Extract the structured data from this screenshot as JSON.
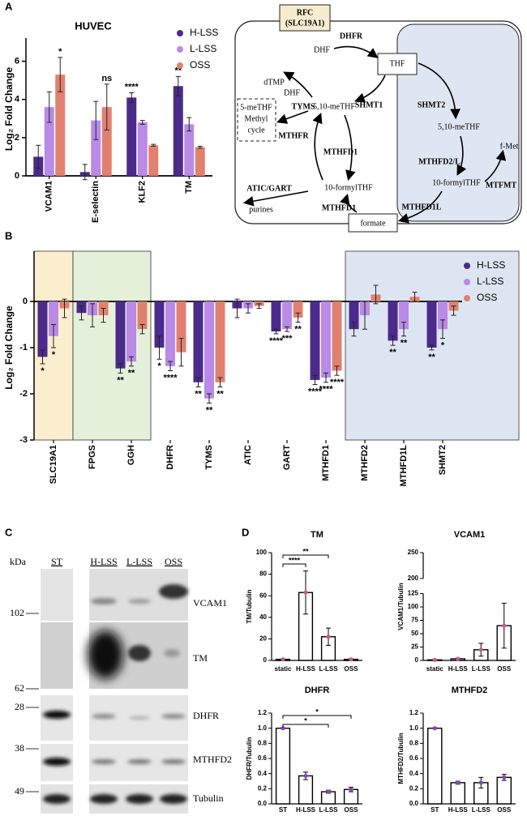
{
  "panels": [
    "A",
    "B",
    "C",
    "D"
  ],
  "chart_data": [
    {
      "type": "grouped-bar",
      "title": "HUVEC",
      "y_label": "Log₂ Fold Change",
      "categories": [
        "VCAM1",
        "E-selectin",
        "KLF2",
        "TM"
      ],
      "series": [
        {
          "name": "H-LSS",
          "color": "#4b2a8c",
          "values": [
            1.0,
            0.2,
            4.1,
            4.7
          ],
          "errors": [
            0.6,
            0.4,
            0.25,
            0.5
          ],
          "annotations": [
            null,
            null,
            "****",
            "**"
          ]
        },
        {
          "name": "L-LSS",
          "color": "#b98ae6",
          "values": [
            3.6,
            2.9,
            2.8,
            2.7
          ],
          "errors": [
            0.8,
            1.0,
            0.1,
            0.35
          ],
          "annotations": [
            null,
            null,
            null,
            null
          ]
        },
        {
          "name": "OSS",
          "color": "#e2806f",
          "values": [
            5.3,
            3.6,
            1.6,
            1.5
          ],
          "errors": [
            0.9,
            1.2,
            0.05,
            0.05
          ],
          "annotations": [
            "*",
            "ns",
            null,
            null
          ]
        }
      ],
      "ylim": [
        0,
        7
      ],
      "yticks": [
        0,
        2,
        4,
        6
      ],
      "legend": "top-right"
    },
    {
      "type": "grouped-bar",
      "y_label": "Log₂ Fold Change",
      "categories": [
        "SLC19A1",
        "FPGS",
        "GGH",
        "DHFR",
        "TYMS",
        "ATIC",
        "GART",
        "MTHFD1",
        "MTHFD2",
        "MTHFD1L",
        "SHMT2"
      ],
      "series": [
        {
          "name": "H-LSS",
          "color": "#4b2a8c",
          "values": [
            -1.2,
            -0.25,
            -1.45,
            -1.0,
            -1.75,
            -0.15,
            -0.65,
            -1.7,
            -0.6,
            -0.85,
            -1.0
          ],
          "errors": [
            0.15,
            0.15,
            0.1,
            0.25,
            0.1,
            0.2,
            0.05,
            0.1,
            0.15,
            0.1,
            0.05
          ],
          "annotations": [
            "*",
            null,
            "**",
            "*",
            "**",
            null,
            "****",
            "****",
            null,
            "**",
            "**"
          ]
        },
        {
          "name": "L-LSS",
          "color": "#b98ae6",
          "values": [
            -0.75,
            -0.3,
            -1.3,
            -1.4,
            -2.1,
            -0.15,
            -0.6,
            -1.65,
            -0.3,
            -0.6,
            -0.6
          ],
          "errors": [
            0.25,
            0.25,
            0.1,
            0.1,
            0.1,
            0.1,
            0.05,
            0.1,
            0.3,
            0.15,
            0.2
          ],
          "annotations": [
            "*",
            null,
            "**",
            "****",
            "**",
            null,
            "***",
            "****",
            null,
            "**",
            "*"
          ]
        },
        {
          "name": "OSS",
          "color": "#e2806f",
          "values": [
            -0.15,
            -0.3,
            -0.6,
            -1.1,
            -1.75,
            -0.1,
            -0.35,
            -1.5,
            0.15,
            0.1,
            -0.2
          ],
          "errors": [
            0.2,
            0.15,
            0.1,
            0.3,
            0.1,
            0.05,
            0.1,
            0.1,
            0.2,
            0.1,
            0.1
          ],
          "annotations": [
            null,
            null,
            null,
            null,
            "**",
            null,
            "**",
            "****",
            null,
            null,
            null
          ]
        }
      ],
      "ylim": [
        -3,
        1
      ],
      "yticks": [
        -3,
        -2,
        -1,
        0
      ],
      "legend": "top-right"
    },
    {
      "type": "bar",
      "title": "TM",
      "y_label": "TM/Tubulin",
      "categories": [
        "static",
        "H-LSS",
        "L-LSS",
        "OSS"
      ],
      "values": [
        1,
        63,
        22,
        1
      ],
      "errors": [
        0.2,
        20,
        8,
        0.5
      ],
      "ylim": [
        0,
        100
      ],
      "yticks": [
        0,
        20,
        40,
        60,
        80,
        100
      ],
      "brackets": [
        {
          "categories": [
            "static",
            "H-LSS"
          ],
          "label": "****"
        },
        {
          "categories": [
            "static",
            "L-LSS"
          ],
          "label": "**"
        }
      ]
    },
    {
      "type": "bar",
      "title": "VCAM1",
      "y_label": "VCAM1/Tubulin",
      "categories": [
        "static",
        "H-LSS",
        "L-LSS",
        "OSS"
      ],
      "values": [
        1,
        3,
        20,
        65
      ],
      "errors": [
        0.3,
        1,
        12,
        42
      ],
      "ylim": [
        0,
        250
      ],
      "yticks": [
        0,
        25,
        50,
        75,
        100,
        125,
        200,
        250
      ],
      "axis_break": [
        125,
        200
      ]
    },
    {
      "type": "bar",
      "title": "DHFR",
      "y_label": "DHFR/Tubulin",
      "categories": [
        "ST",
        "H-LSS",
        "L-LSS",
        "OSS"
      ],
      "values": [
        1.0,
        0.37,
        0.16,
        0.19
      ],
      "errors": [
        0.005,
        0.05,
        0.02,
        0.03
      ],
      "ylim": [
        0,
        1.2
      ],
      "yticks": [
        {
          "value": 0,
          "label": "0.0"
        },
        0.2,
        0.4,
        0.6,
        0.8,
        {
          "value": 1,
          "label": "1.0"
        },
        1.2
      ],
      "brackets": [
        {
          "categories": [
            "ST",
            "L-LSS"
          ],
          "label": "*"
        },
        {
          "categories": [
            "ST",
            "OSS"
          ],
          "label": "*"
        }
      ]
    },
    {
      "type": "bar",
      "title": "MTHFD2",
      "y_label": "MTHFD2/Tubulin",
      "categories": [
        "ST",
        "H-LSS",
        "L-LSS",
        "OSS"
      ],
      "values": [
        1.0,
        0.28,
        0.28,
        0.35
      ],
      "errors": [
        0.005,
        0.02,
        0.07,
        0.04
      ],
      "ylim": [
        0,
        1.2
      ],
      "yticks": [
        {
          "value": 0,
          "label": "0.0"
        },
        0.2,
        0.4,
        0.6,
        0.8,
        {
          "value": 1,
          "label": "1.0"
        },
        1.2
      ]
    }
  ],
  "diagram": {
    "labels": [
      "RFC",
      "(SLC19A1)",
      "DHFR",
      "DHF",
      "THF",
      "dTMP",
      "DHF",
      "TYMS",
      "SHMT1",
      "SHMT2",
      "5,10-meTHF",
      "5,10-meTHF",
      "5-meTHF",
      "Methyl",
      "cycle",
      "MTHFR",
      "MTHFD1",
      "MTHFD2/L",
      "f-Met",
      "10-formylTHF",
      "10-formylTHF",
      "MTFMT",
      "ATIC/GART",
      "purines",
      "MTHFD1",
      "MTHFD1L",
      "formate"
    ]
  },
  "blot": {
    "unit": "kDa",
    "lanes": [
      "ST",
      "H-LSS",
      "L-LSS",
      "OSS"
    ],
    "markers": [
      "102",
      "62",
      "28",
      "38",
      "49"
    ],
    "proteins": [
      "VCAM1",
      "TM",
      "DHFR",
      "MTHFD2",
      "Tubulin"
    ]
  }
}
